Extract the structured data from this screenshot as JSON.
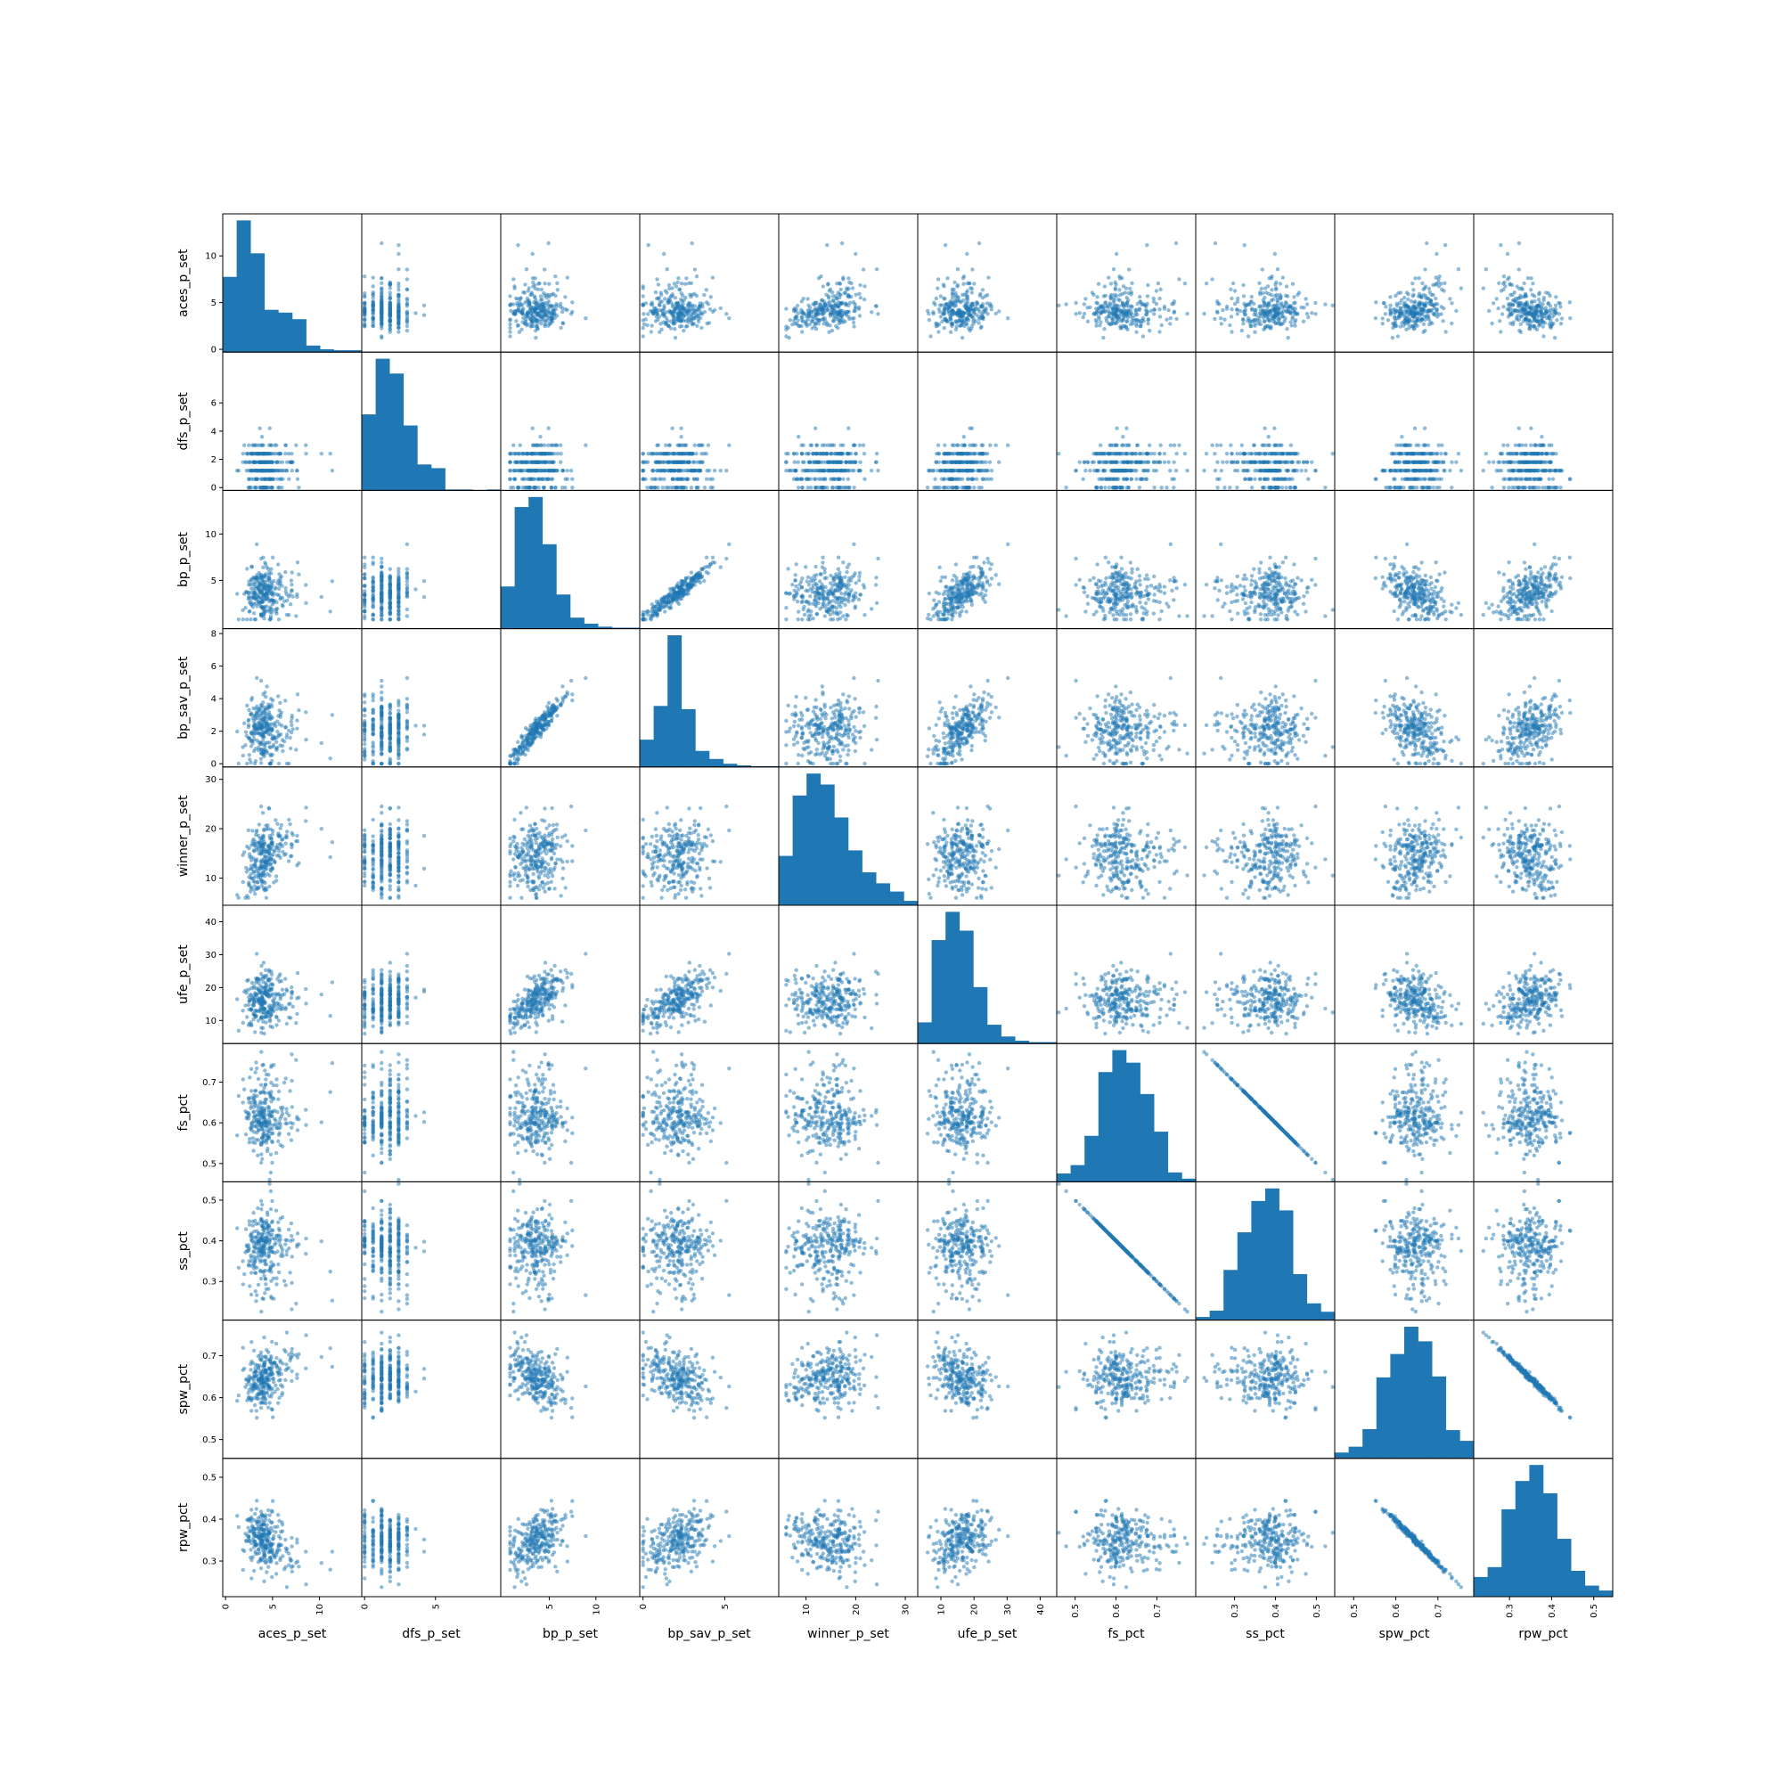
{
  "chart_data": {
    "type": "scatter_matrix",
    "diagonal": "hist",
    "color": "#1f77b4",
    "point_alpha": 0.5,
    "variables": [
      {
        "name": "aces_p_set",
        "range": [
          -0.3,
          14.5
        ],
        "ticks": [
          0,
          5,
          10
        ],
        "hist": [
          8,
          14,
          10.5,
          4.5,
          4.2,
          3.5,
          0.7,
          0.3,
          0.2,
          0.2
        ]
      },
      {
        "name": "dfs_p_set",
        "range": [
          -0.2,
          9.6
        ],
        "ticks": [
          0,
          2,
          4,
          6
        ],
        "axis_ticks": [
          0,
          5
        ],
        "hist": [
          4.1,
          7.1,
          6.3,
          3.5,
          1.4,
          1.2,
          0.05,
          0.05,
          0,
          0.05
        ]
      },
      {
        "name": "bp_p_set",
        "range": [
          -0.2,
          14.7
        ],
        "ticks": [
          5,
          10
        ],
        "axis_ticks": [
          5,
          10
        ],
        "hist": [
          4.2,
          12.1,
          13.1,
          8.4,
          3.4,
          1.1,
          0.5,
          0.2,
          0.1,
          0.1
        ]
      },
      {
        "name": "bp_sav_p_set",
        "range": [
          -0.2,
          8.3
        ],
        "ticks": [
          0,
          2,
          4,
          6,
          8
        ],
        "axis_ticks": [
          0,
          5
        ],
        "hist": [
          1.7,
          3.8,
          8.2,
          3.6,
          1.0,
          0.5,
          0.2,
          0.1,
          0.05,
          0.05
        ]
      },
      {
        "name": "winner_p_set",
        "range": [
          4.5,
          32.5
        ],
        "ticks": [
          10,
          20,
          30
        ],
        "hist": [
          9,
          20,
          24,
          22,
          16,
          10,
          6,
          4,
          2.5,
          0.8
        ]
      },
      {
        "name": "ufe_p_set",
        "range": [
          3,
          45
        ],
        "ticks": [
          10,
          20,
          30,
          40
        ],
        "hist": [
          4.5,
          22,
          28,
          24,
          12,
          4,
          1.5,
          0.6,
          0.3,
          0.3
        ]
      },
      {
        "name": "fs_pct",
        "range": [
          0.455,
          0.795
        ],
        "ticks": [
          0.5,
          0.6,
          0.7
        ],
        "hist": [
          0.8,
          1.6,
          4.4,
          10.5,
          12.6,
          11.4,
          8.4,
          4.8,
          0.9,
          0.3
        ]
      },
      {
        "name": "ss_pct",
        "range": [
          0.205,
          0.545
        ],
        "ticks": [
          0.3,
          0.4,
          0.5
        ],
        "hist": [
          0.3,
          0.9,
          4.8,
          8.4,
          11.4,
          12.6,
          10.5,
          4.4,
          1.6,
          0.8
        ]
      },
      {
        "name": "spw_pct",
        "range": [
          0.455,
          0.785
        ],
        "ticks": [
          0.5,
          0.6,
          0.7
        ],
        "hist": [
          0.6,
          1.2,
          3.0,
          8.3,
          10.7,
          13.5,
          12.0,
          8.4,
          2.9,
          1.8
        ]
      },
      {
        "name": "rpw_pct",
        "range": [
          0.215,
          0.545
        ],
        "ticks": [
          0.3,
          0.4,
          0.5
        ],
        "hist": [
          1.6,
          2.4,
          7.1,
          9.4,
          10.7,
          8.4,
          4.7,
          2.1,
          0.9,
          0.5
        ]
      }
    ]
  }
}
